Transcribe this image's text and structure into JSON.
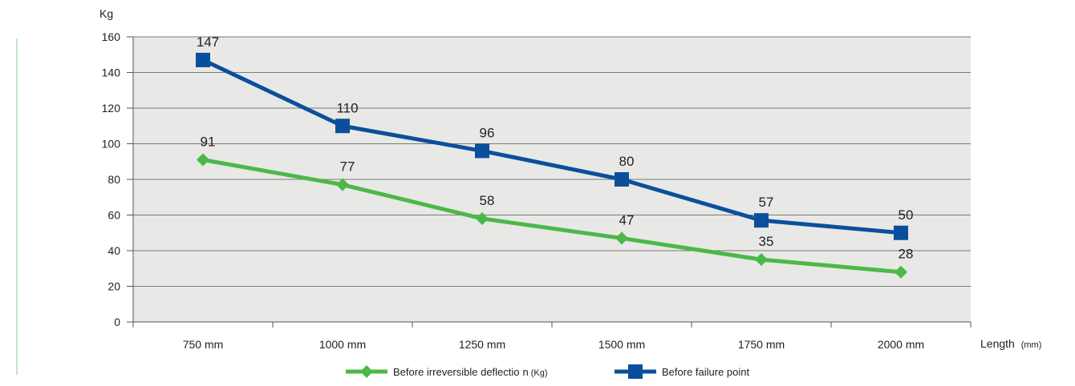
{
  "chart_data": {
    "type": "line",
    "categories": [
      "750 mm",
      "1000 mm",
      "1250 mm",
      "1500 mm",
      "1750 mm",
      "2000 mm"
    ],
    "series": [
      {
        "name": "Before irreversible deflectio",
        "name_suffix": "n",
        "unit": "(Kg)",
        "values": [
          91,
          77,
          58,
          47,
          35,
          28
        ],
        "color": "#4cb849",
        "marker": "diamond"
      },
      {
        "name": "Before failure point",
        "values": [
          147,
          110,
          96,
          80,
          57,
          50
        ],
        "color": "#0b4f9c",
        "marker": "square"
      }
    ],
    "ylabel": "Kg",
    "xlabel": "Length",
    "xlabel_unit": "(mm)",
    "ylim": [
      0,
      160
    ],
    "yticks": [
      0,
      20,
      40,
      60,
      80,
      100,
      120,
      140,
      160
    ],
    "grid": true,
    "legend": "bottom",
    "plot_background": "#e8e8e6",
    "grid_color": "#7a7a7a"
  }
}
